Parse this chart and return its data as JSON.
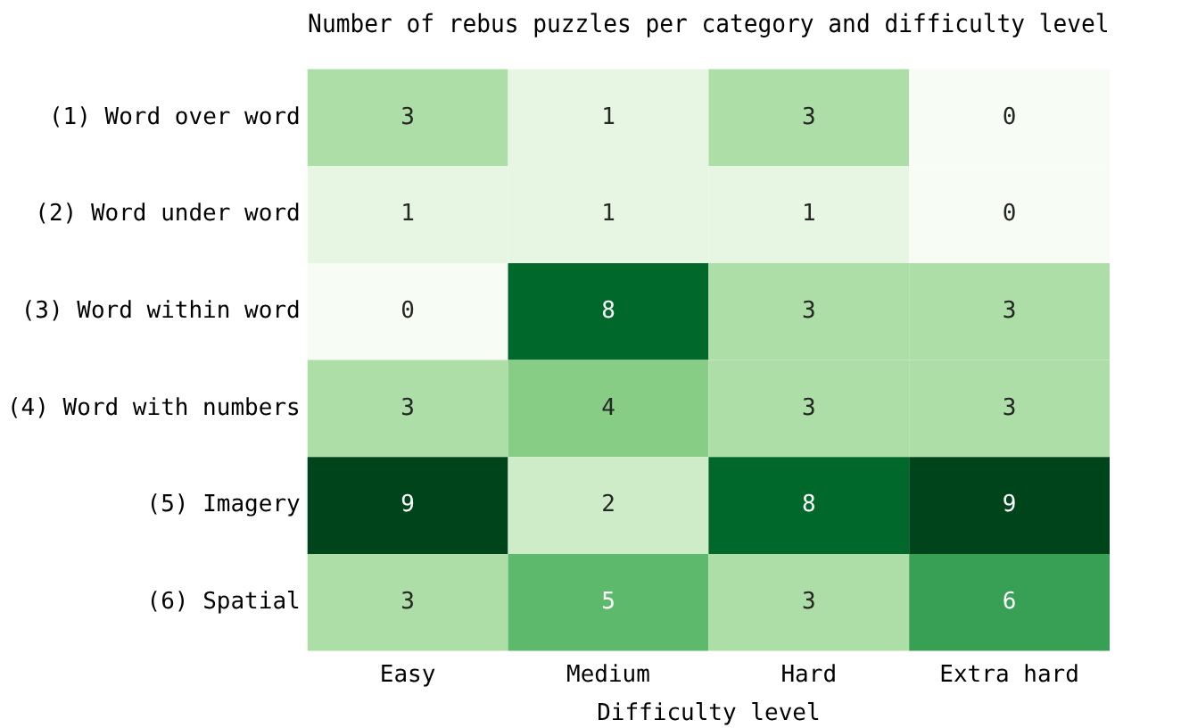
{
  "chart_data": {
    "type": "heatmap",
    "title": "Number of rebus puzzles per category and difficulty level",
    "xlabel": "Difficulty level",
    "categories": [
      "Easy",
      "Medium",
      "Hard",
      "Extra hard"
    ],
    "y_categories": [
      "(1) Word over word",
      "(2) Word under word",
      "(3) Word within word",
      "(4) Word with numbers",
      "(5) Imagery",
      "(6) Spatial"
    ],
    "cells": [
      [
        3,
        1,
        3,
        0
      ],
      [
        1,
        1,
        1,
        0
      ],
      [
        0,
        8,
        3,
        3
      ],
      [
        3,
        4,
        3,
        3
      ],
      [
        9,
        2,
        8,
        9
      ],
      [
        3,
        5,
        3,
        6
      ]
    ],
    "data_labels": true,
    "grid": false
  }
}
